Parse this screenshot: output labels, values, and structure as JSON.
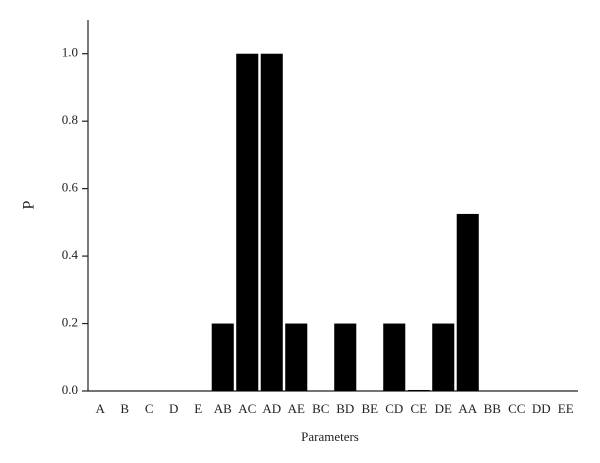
{
  "chart_data": {
    "type": "bar",
    "x_label": "Parameters",
    "y_label": "P",
    "categories": [
      "A",
      "B",
      "C",
      "D",
      "E",
      "AB",
      "AC",
      "AD",
      "AE",
      "BC",
      "BD",
      "BE",
      "CD",
      "CE",
      "DE",
      "AA",
      "BB",
      "CC",
      "DD",
      "EE"
    ],
    "values": [
      0,
      0,
      0,
      0,
      0,
      0.2,
      1.0,
      1.0,
      0.2,
      0,
      0.2,
      0,
      0.2,
      0.003,
      0.2,
      0.525,
      0,
      0,
      0,
      0
    ],
    "color": "#000000",
    "ylim": [
      0,
      1.1
    ],
    "yticks": [
      {
        "value": 0,
        "label": "0.0"
      },
      {
        "value": 0.2,
        "label": "0.2"
      },
      {
        "value": 0.4,
        "label": "0.4"
      },
      {
        "value": 0.6,
        "label": "0.6"
      },
      {
        "value": 0.8,
        "label": "0.8"
      },
      {
        "value": 1.0,
        "label": "1.0"
      }
    ],
    "grid": false
  }
}
